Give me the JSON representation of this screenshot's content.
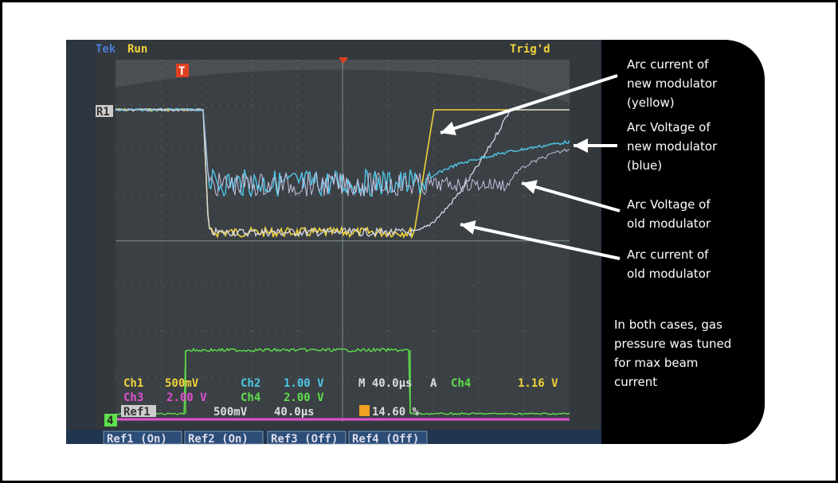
{
  "scope": {
    "brand": "Tek",
    "status": "Run",
    "trigger_state": "Trig'd",
    "trigger_marker": "T",
    "ref_marker": "R1",
    "channel_marker": "4",
    "row1": [
      "Ch1",
      "500mV",
      "Ch2",
      "1.00 V",
      "M 40.0µs",
      "A",
      "Ch4",
      "1.16 V"
    ],
    "row2": [
      "Ch3",
      "2.00 V",
      "Ch4",
      "2.00 V"
    ],
    "row3": [
      "Ref1",
      "500mV",
      "40.0µs",
      "14.60 %"
    ],
    "menu": [
      "Ref1 (On)",
      "Ref2 (On)",
      "Ref3 (Off)",
      "Ref4 (Off)"
    ]
  },
  "annotations": [
    {
      "lines": [
        "Arc current of",
        "new modulator",
        "(yellow)"
      ]
    },
    {
      "lines": [
        "Arc Voltage of",
        "new modulator",
        "(blue)"
      ]
    },
    {
      "lines": [
        "Arc Voltage of",
        "old modulator"
      ]
    },
    {
      "lines": [
        "Arc current of",
        "old modulator"
      ]
    },
    {
      "lines": [
        "In both cases, gas",
        "pressure was tuned",
        "for max beam",
        "current"
      ]
    }
  ]
}
